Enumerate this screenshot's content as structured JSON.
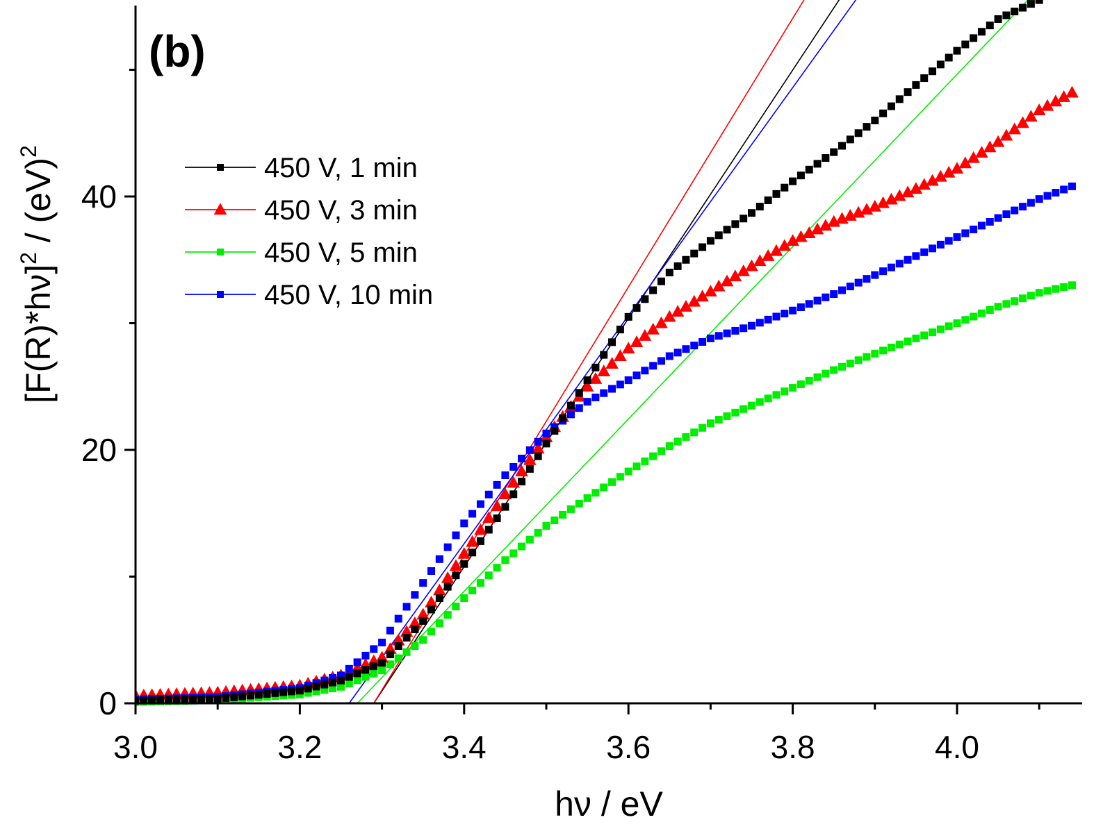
{
  "chart_data": {
    "type": "scatter",
    "panel_label": "(b)",
    "xlabel": "hν / eV",
    "ylabel": {
      "main": "[F(R)*hν]",
      "sup1": "2",
      "mid": " / (eV)",
      "sup2": "2"
    },
    "xlim": [
      3.0,
      4.15
    ],
    "ylim": [
      0,
      55
    ],
    "x_ticks": [
      3.0,
      3.1,
      3.2,
      3.3,
      3.4,
      3.5,
      3.6,
      3.7,
      3.8,
      3.9,
      4.0,
      4.1
    ],
    "x_tick_labels": [
      {
        "value": 3.0,
        "label": "3.0"
      },
      {
        "value": 3.2,
        "label": "3.2"
      },
      {
        "value": 3.4,
        "label": "3.4"
      },
      {
        "value": 3.6,
        "label": "3.6"
      },
      {
        "value": 3.8,
        "label": "3.8"
      },
      {
        "value": 4.0,
        "label": "4.0"
      }
    ],
    "y_ticks": [
      0,
      10,
      20,
      30,
      40,
      50
    ],
    "y_tick_labels": [
      {
        "value": 0,
        "label": "0"
      },
      {
        "value": 20,
        "label": "20"
      },
      {
        "value": 40,
        "label": "40"
      }
    ],
    "grid": false,
    "legend_position": "upper-left",
    "series": [
      {
        "name": "450 V, 1 min",
        "color": "#000000",
        "marker": "square",
        "points": [
          [
            3.0,
            0.2
          ],
          [
            3.1,
            0.35
          ],
          [
            3.2,
            1.0
          ],
          [
            3.25,
            1.8
          ],
          [
            3.3,
            3.2
          ],
          [
            3.35,
            6.5
          ],
          [
            3.4,
            11.0
          ],
          [
            3.45,
            15.5
          ],
          [
            3.5,
            20.5
          ],
          [
            3.55,
            25.5
          ],
          [
            3.6,
            30.5
          ],
          [
            3.65,
            34.0
          ],
          [
            3.7,
            36.5
          ],
          [
            3.75,
            38.7
          ],
          [
            3.8,
            41.2
          ],
          [
            3.85,
            43.5
          ],
          [
            3.9,
            46.0
          ],
          [
            3.95,
            48.8
          ],
          [
            4.0,
            51.5
          ],
          [
            4.05,
            54.0
          ],
          [
            4.1,
            55.5
          ]
        ]
      },
      {
        "name": "450 V, 3 min",
        "color": "#ff0000",
        "marker": "triangle",
        "points": [
          [
            3.0,
            0.6
          ],
          [
            3.1,
            0.85
          ],
          [
            3.2,
            1.4
          ],
          [
            3.25,
            2.2
          ],
          [
            3.3,
            3.6
          ],
          [
            3.35,
            7.0
          ],
          [
            3.4,
            11.8
          ],
          [
            3.45,
            16.5
          ],
          [
            3.5,
            21.0
          ],
          [
            3.55,
            25.0
          ],
          [
            3.6,
            28.0
          ],
          [
            3.65,
            30.5
          ],
          [
            3.7,
            32.5
          ],
          [
            3.75,
            34.5
          ],
          [
            3.8,
            36.5
          ],
          [
            3.85,
            38.0
          ],
          [
            3.9,
            39.2
          ],
          [
            3.95,
            40.6
          ],
          [
            4.0,
            42.2
          ],
          [
            4.05,
            44.3
          ],
          [
            4.1,
            46.8
          ],
          [
            4.14,
            48.2
          ]
        ]
      },
      {
        "name": "450 V, 5 min",
        "color": "#00ee00",
        "marker": "square",
        "points": [
          [
            3.0,
            0.1
          ],
          [
            3.1,
            0.25
          ],
          [
            3.2,
            0.7
          ],
          [
            3.25,
            1.3
          ],
          [
            3.3,
            2.6
          ],
          [
            3.35,
            5.0
          ],
          [
            3.4,
            8.3
          ],
          [
            3.45,
            11.3
          ],
          [
            3.5,
            14.0
          ],
          [
            3.55,
            16.2
          ],
          [
            3.6,
            18.3
          ],
          [
            3.65,
            20.3
          ],
          [
            3.7,
            22.1
          ],
          [
            3.75,
            23.5
          ],
          [
            3.8,
            24.9
          ],
          [
            3.85,
            26.3
          ],
          [
            3.9,
            27.6
          ],
          [
            3.95,
            28.8
          ],
          [
            4.0,
            30.0
          ],
          [
            4.05,
            31.3
          ],
          [
            4.1,
            32.4
          ],
          [
            4.14,
            33.0
          ]
        ]
      },
      {
        "name": "450 V, 10 min",
        "color": "#0000ff",
        "marker": "square",
        "points": [
          [
            3.0,
            0.3
          ],
          [
            3.1,
            0.5
          ],
          [
            3.2,
            1.2
          ],
          [
            3.25,
            2.2
          ],
          [
            3.3,
            4.8
          ],
          [
            3.35,
            9.5
          ],
          [
            3.4,
            14.2
          ],
          [
            3.45,
            18.0
          ],
          [
            3.5,
            21.3
          ],
          [
            3.55,
            23.8
          ],
          [
            3.6,
            25.5
          ],
          [
            3.65,
            27.4
          ],
          [
            3.7,
            28.8
          ],
          [
            3.75,
            29.8
          ],
          [
            3.8,
            31.0
          ],
          [
            3.85,
            32.3
          ],
          [
            3.9,
            33.8
          ],
          [
            3.95,
            35.3
          ],
          [
            4.0,
            36.8
          ],
          [
            4.05,
            38.3
          ],
          [
            4.1,
            39.8
          ],
          [
            4.14,
            40.8
          ]
        ]
      }
    ],
    "fit_lines": [
      {
        "series": "450 V, 1 min",
        "color": "#000000",
        "x0": 3.29,
        "slope": 98.0
      },
      {
        "series": "450 V, 3 min",
        "color": "#ff0000",
        "x0": 3.29,
        "slope": 106.0
      },
      {
        "series": "450 V, 5 min",
        "color": "#00ee00",
        "x0": 3.27,
        "slope": 68.0
      },
      {
        "series": "450 V, 10 min",
        "color": "#0000ff",
        "x0": 3.26,
        "slope": 90.0
      }
    ]
  }
}
